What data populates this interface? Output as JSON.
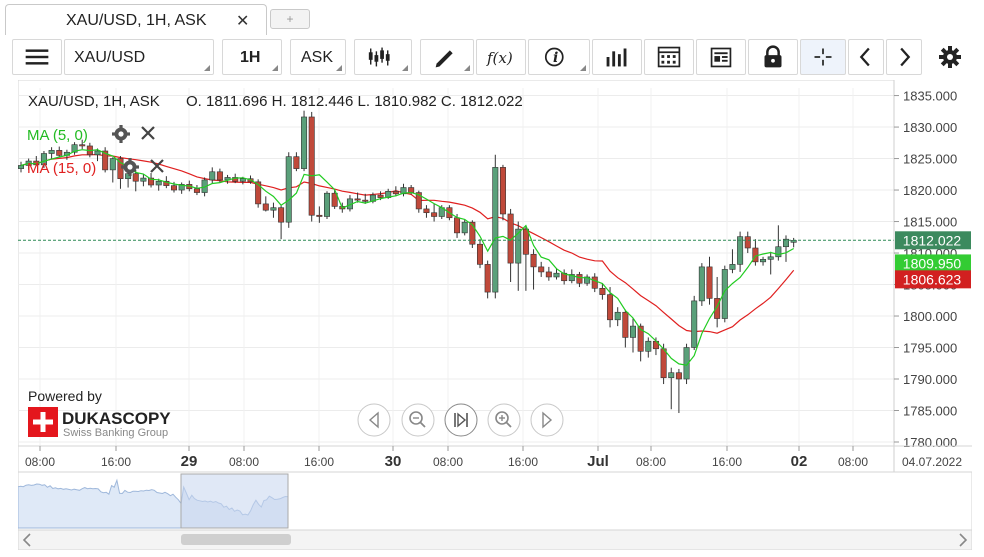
{
  "tab": {
    "title": "XAU/USD, 1H, ASK",
    "close": "✕",
    "new_tab": "+"
  },
  "toolbar": {
    "symbol": "XAU/USD",
    "period": "1H",
    "side": "ASK",
    "fx_label": "f(x)",
    "info_label": "i"
  },
  "chart_header": {
    "title": "XAU/USD, 1H, ASK",
    "ohlc": "O. 1811.696 H. 1812.446 L. 1810.982 C. 1812.022"
  },
  "indicators": [
    {
      "label": "MA (5, 0)",
      "color": "#22bb22"
    },
    {
      "label": "MA (15, 0)",
      "color": "#e02020"
    }
  ],
  "branding": {
    "powered_by": "Powered by",
    "brand": "DUKASCOPY",
    "tagline": "Swiss Banking Group"
  },
  "price_labels": {
    "current": "1812.022",
    "ma_fast": "1809.950",
    "ma_slow": "1806.623"
  },
  "colors": {
    "up": "#5aa07a",
    "down": "#c0493a",
    "ma_fast": "#22cc22",
    "ma_slow": "#e02020",
    "current_line": "#2e8b57",
    "badge_current": "#3c8a5e",
    "badge_slow": "#d22020"
  },
  "nav_icons": [
    "chevron-left-icon",
    "zoom-out-icon",
    "reset-icon",
    "zoom-in-icon",
    "chevron-right-icon"
  ],
  "chart_data": {
    "type": "candlestick",
    "ylim": [
      1780,
      1837
    ],
    "y_ticks": [
      "1835.000",
      "1830.000",
      "1825.000",
      "1820.000",
      "1815.000",
      "1810.000",
      "1805.000",
      "1800.000",
      "1795.000",
      "1790.000",
      "1785.000",
      "1780.000"
    ],
    "x_ticks": [
      "08:00",
      "16:00",
      "29",
      "08:00",
      "16:00",
      "30",
      "08:00",
      "16:00",
      "Jul",
      "08:00",
      "16:00",
      "02",
      "08:00",
      "04.07.2022"
    ],
    "bold_ticks": [
      "29",
      "30",
      "Jul",
      "02"
    ],
    "candles": [
      [
        1823.4,
        1824.5,
        1822.8,
        1823.9
      ],
      [
        1823.9,
        1825.0,
        1823.2,
        1824.6
      ],
      [
        1824.6,
        1825.4,
        1823.8,
        1824.0
      ],
      [
        1824.0,
        1826.2,
        1823.5,
        1825.8
      ],
      [
        1825.8,
        1826.8,
        1825.0,
        1826.3
      ],
      [
        1826.3,
        1826.9,
        1825.2,
        1825.5
      ],
      [
        1825.5,
        1826.4,
        1824.8,
        1826.0
      ],
      [
        1826.0,
        1827.6,
        1825.6,
        1827.2
      ],
      [
        1827.2,
        1828.0,
        1826.5,
        1827.0
      ],
      [
        1827.0,
        1827.5,
        1825.2,
        1825.6
      ],
      [
        1825.6,
        1826.6,
        1824.6,
        1826.2
      ],
      [
        1826.2,
        1826.8,
        1822.8,
        1823.2
      ],
      [
        1823.2,
        1825.2,
        1821.2,
        1825.0
      ],
      [
        1825.0,
        1825.4,
        1820.2,
        1821.8
      ],
      [
        1821.8,
        1823.6,
        1820.4,
        1822.6
      ],
      [
        1822.6,
        1823.2,
        1819.8,
        1821.4
      ],
      [
        1821.4,
        1822.5,
        1820.6,
        1821.9
      ],
      [
        1821.9,
        1822.7,
        1820.4,
        1820.8
      ],
      [
        1820.8,
        1821.8,
        1819.9,
        1821.4
      ],
      [
        1821.4,
        1822.2,
        1820.3,
        1820.7
      ],
      [
        1820.7,
        1821.3,
        1819.6,
        1820.0
      ],
      [
        1820.0,
        1821.2,
        1819.4,
        1820.9
      ],
      [
        1820.9,
        1821.5,
        1819.8,
        1820.2
      ],
      [
        1820.2,
        1820.8,
        1819.2,
        1819.6
      ],
      [
        1819.6,
        1822.0,
        1819.0,
        1821.6
      ],
      [
        1821.6,
        1823.6,
        1821.0,
        1822.9
      ],
      [
        1822.9,
        1823.4,
        1821.2,
        1821.6
      ],
      [
        1821.6,
        1822.4,
        1821.0,
        1822.0
      ],
      [
        1822.0,
        1822.6,
        1821.1,
        1821.4
      ],
      [
        1821.4,
        1822.1,
        1820.9,
        1821.8
      ],
      [
        1821.8,
        1822.3,
        1821.0,
        1821.3
      ],
      [
        1821.3,
        1821.7,
        1817.2,
        1817.8
      ],
      [
        1817.8,
        1819.0,
        1816.6,
        1816.8
      ],
      [
        1816.8,
        1818.0,
        1815.6,
        1817.2
      ],
      [
        1817.2,
        1817.6,
        1812.2,
        1814.9
      ],
      [
        1814.9,
        1826.0,
        1814.0,
        1825.3
      ],
      [
        1825.3,
        1826.0,
        1823.0,
        1823.4
      ],
      [
        1823.4,
        1832.6,
        1823.0,
        1831.6
      ],
      [
        1831.6,
        1832.4,
        1815.0,
        1816.0
      ],
      [
        1816.0,
        1817.4,
        1814.8,
        1815.8
      ],
      [
        1815.8,
        1819.8,
        1815.4,
        1819.5
      ],
      [
        1819.5,
        1820.0,
        1817.0,
        1817.4
      ],
      [
        1817.4,
        1818.0,
        1816.4,
        1817.0
      ],
      [
        1817.0,
        1819.2,
        1816.6,
        1818.6
      ],
      [
        1818.6,
        1819.6,
        1818.0,
        1818.4
      ],
      [
        1818.4,
        1819.4,
        1817.8,
        1818.2
      ],
      [
        1818.2,
        1819.6,
        1817.9,
        1819.2
      ],
      [
        1819.2,
        1819.8,
        1818.4,
        1818.8
      ],
      [
        1818.8,
        1820.2,
        1818.6,
        1819.8
      ],
      [
        1819.8,
        1820.6,
        1819.0,
        1819.4
      ],
      [
        1819.4,
        1821.0,
        1819.0,
        1820.4
      ],
      [
        1820.4,
        1820.8,
        1819.3,
        1819.6
      ],
      [
        1819.6,
        1819.9,
        1816.4,
        1817.0
      ],
      [
        1817.0,
        1817.6,
        1815.6,
        1816.4
      ],
      [
        1816.4,
        1817.8,
        1815.0,
        1815.8
      ],
      [
        1815.8,
        1817.6,
        1815.4,
        1817.2
      ],
      [
        1817.2,
        1817.6,
        1815.2,
        1815.6
      ],
      [
        1815.6,
        1816.2,
        1812.4,
        1813.2
      ],
      [
        1813.2,
        1815.4,
        1812.8,
        1814.9
      ],
      [
        1814.9,
        1815.2,
        1810.8,
        1811.4
      ],
      [
        1811.4,
        1812.2,
        1807.6,
        1808.2
      ],
      [
        1808.2,
        1808.8,
        1802.8,
        1803.8
      ],
      [
        1803.8,
        1825.6,
        1802.8,
        1823.6
      ],
      [
        1823.6,
        1824.0,
        1815.2,
        1816.2
      ],
      [
        1816.2,
        1817.0,
        1805.4,
        1808.4
      ],
      [
        1808.4,
        1815.0,
        1804.0,
        1813.8
      ],
      [
        1813.8,
        1814.4,
        1804.0,
        1809.8
      ],
      [
        1809.8,
        1810.6,
        1804.2,
        1807.8
      ],
      [
        1807.8,
        1808.6,
        1806.2,
        1807.0
      ],
      [
        1807.0,
        1807.8,
        1805.6,
        1806.2
      ],
      [
        1806.2,
        1807.6,
        1805.8,
        1806.8
      ],
      [
        1806.8,
        1807.4,
        1805.0,
        1805.6
      ],
      [
        1805.6,
        1807.4,
        1805.2,
        1806.6
      ],
      [
        1806.6,
        1807.0,
        1804.6,
        1805.2
      ],
      [
        1805.2,
        1806.6,
        1804.8,
        1806.2
      ],
      [
        1806.2,
        1806.8,
        1803.8,
        1804.4
      ],
      [
        1804.4,
        1805.2,
        1802.6,
        1803.4
      ],
      [
        1803.4,
        1804.6,
        1798.2,
        1799.4
      ],
      [
        1799.4,
        1801.4,
        1798.4,
        1800.6
      ],
      [
        1800.6,
        1801.0,
        1795.0,
        1796.6
      ],
      [
        1796.6,
        1799.6,
        1794.2,
        1798.4
      ],
      [
        1798.4,
        1798.8,
        1792.8,
        1794.4
      ],
      [
        1794.4,
        1796.6,
        1793.4,
        1796.0
      ],
      [
        1796.0,
        1796.6,
        1793.8,
        1794.8
      ],
      [
        1794.8,
        1795.6,
        1789.2,
        1790.2
      ],
      [
        1790.2,
        1791.8,
        1785.2,
        1791.0
      ],
      [
        1791.0,
        1791.6,
        1784.6,
        1790.0
      ],
      [
        1790.0,
        1795.6,
        1789.2,
        1795.0
      ],
      [
        1795.0,
        1803.2,
        1794.6,
        1802.4
      ],
      [
        1802.4,
        1808.4,
        1801.6,
        1807.8
      ],
      [
        1807.8,
        1809.4,
        1801.8,
        1802.8
      ],
      [
        1802.8,
        1806.2,
        1798.2,
        1799.6
      ],
      [
        1799.6,
        1808.0,
        1799.0,
        1807.4
      ],
      [
        1807.4,
        1810.6,
        1806.8,
        1808.2
      ],
      [
        1808.2,
        1813.4,
        1807.0,
        1812.6
      ],
      [
        1812.6,
        1813.4,
        1810.0,
        1810.8
      ],
      [
        1810.8,
        1812.2,
        1808.0,
        1808.6
      ],
      [
        1808.6,
        1809.4,
        1808.0,
        1809.0
      ],
      [
        1809.0,
        1810.2,
        1806.6,
        1809.4
      ],
      [
        1809.4,
        1814.4,
        1808.8,
        1811.0
      ],
      [
        1811.0,
        1812.8,
        1808.6,
        1812.2
      ],
      [
        1811.7,
        1812.4,
        1810.9,
        1812.0
      ]
    ],
    "ma_fast_last": 1809.95,
    "ma_slow_last": 1806.623,
    "current_price": 1812.022
  }
}
